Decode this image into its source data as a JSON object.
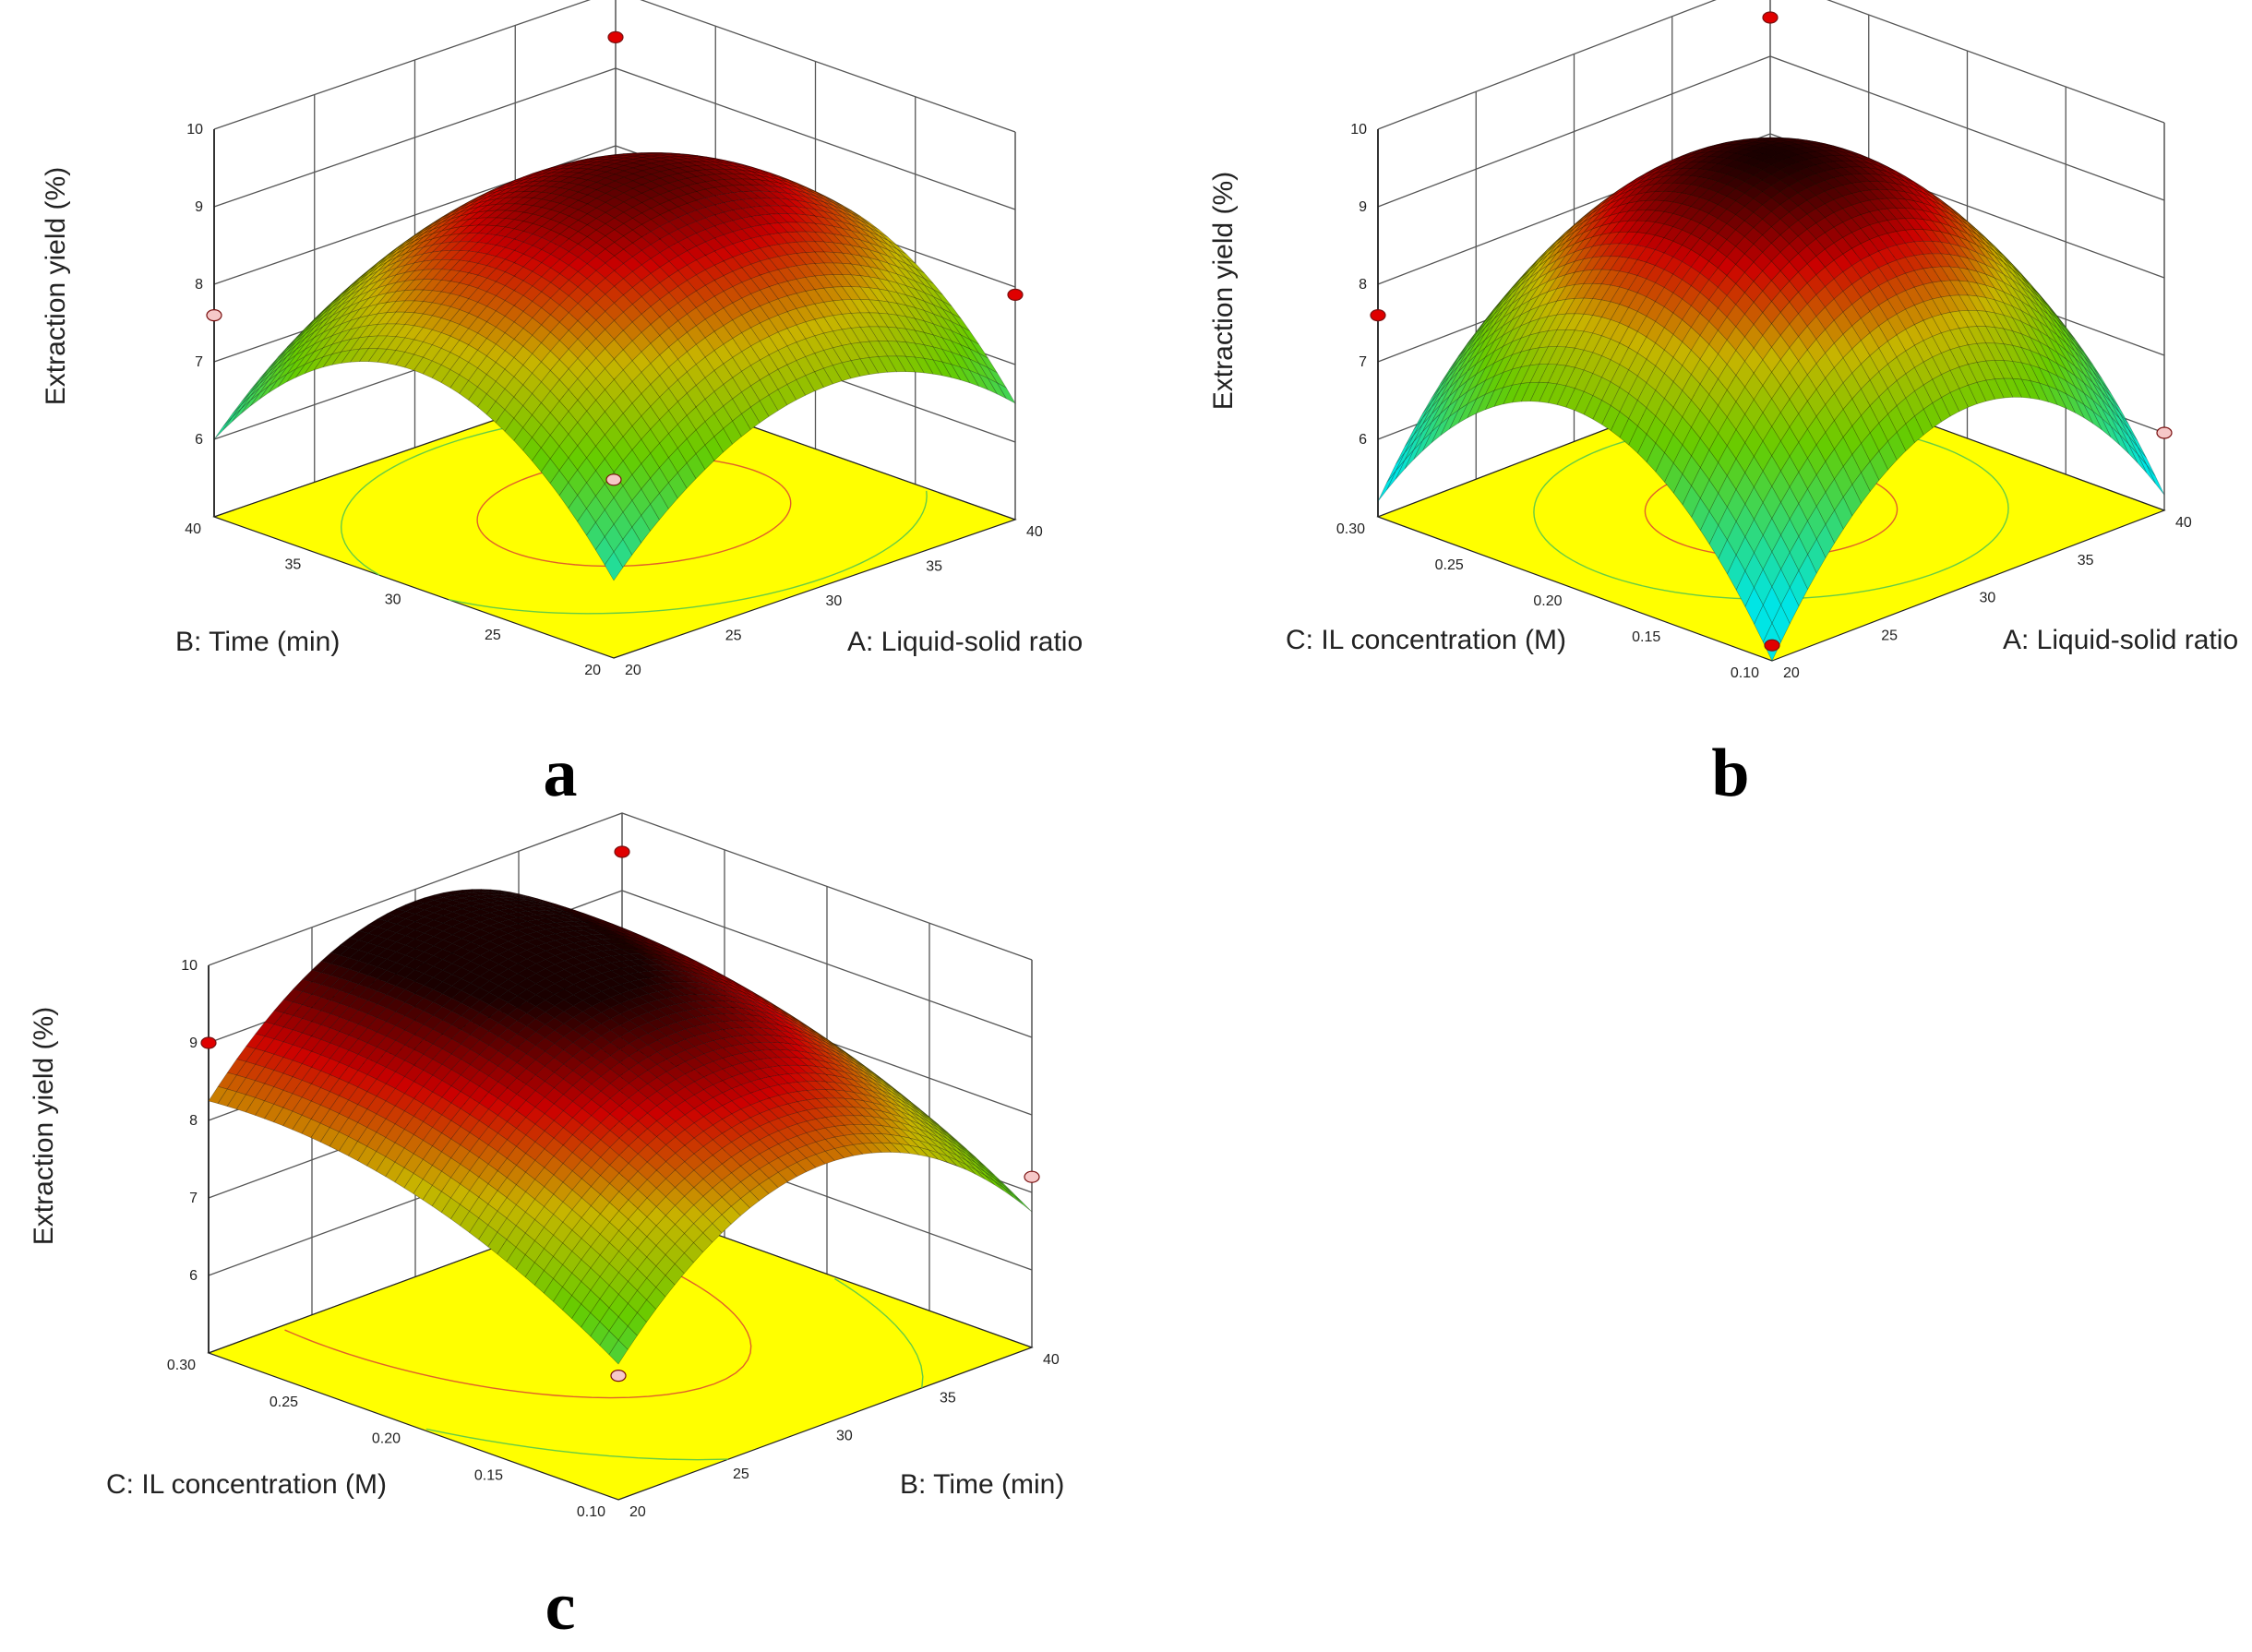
{
  "figure": {
    "colors": {
      "floor": "#ffff00",
      "low": "#00e5e5",
      "mid": "#66cc00",
      "high": "#cc0000",
      "top": "#1a0000"
    }
  },
  "chart_data": [
    {
      "id": "a",
      "type": "surface3d",
      "panel_label": "a",
      "zlabel": "Extraction yield (%)",
      "xlabel": "A: Liquid-solid ratio",
      "ylabel": "B: Time (min)",
      "x_ticks": [
        "20",
        "25",
        "30",
        "35",
        "40"
      ],
      "y_ticks": [
        "20",
        "25",
        "30",
        "35",
        "40"
      ],
      "z_ticks": [
        "6",
        "7",
        "8",
        "9",
        "10"
      ],
      "xlim": [
        20,
        40
      ],
      "ylim": [
        20,
        40
      ],
      "zlim": [
        5,
        10
      ],
      "z_tick_values": [
        6,
        7,
        8,
        9,
        10
      ],
      "surface": {
        "z0": 9.35,
        "ax": -1.3,
        "ay": -1.8,
        "bx": 0.25,
        "by": 0.0,
        "cxy": 0.0
      },
      "points": [
        {
          "x": 20,
          "y": 20,
          "z": 7.3,
          "high": false
        },
        {
          "x": 40,
          "y": 20,
          "z": 7.9,
          "high": true
        },
        {
          "x": 20,
          "y": 40,
          "z": 7.6,
          "high": false
        },
        {
          "x": 40,
          "y": 40,
          "z": 9.4,
          "high": true
        }
      ]
    },
    {
      "id": "b",
      "type": "surface3d",
      "panel_label": "b",
      "zlabel": "Extraction yield (%)",
      "xlabel": "A: Liquid-solid ratio",
      "ylabel": "C: IL concentration (M)",
      "x_ticks": [
        "20",
        "25",
        "30",
        "35",
        "40"
      ],
      "y_ticks": [
        "0.10",
        "0.15",
        "0.20",
        "0.25",
        "0.30"
      ],
      "z_ticks": [
        "6",
        "7",
        "8",
        "9",
        "10"
      ],
      "xlim": [
        20,
        40
      ],
      "ylim": [
        0.1,
        0.3
      ],
      "zlim": [
        5,
        10
      ],
      "z_tick_values": [
        6,
        7,
        8,
        9,
        10
      ],
      "surface": {
        "z0": 9.6,
        "ax": -2.2,
        "ay": -2.2,
        "bx": 0.1,
        "by": 0.1,
        "cxy": 0.0
      },
      "points": [
        {
          "x": 20,
          "y": 0.1,
          "z": 5.2,
          "high": true
        },
        {
          "x": 40,
          "y": 0.1,
          "z": 6.0,
          "high": false
        },
        {
          "x": 20,
          "y": 0.3,
          "z": 7.6,
          "high": true
        },
        {
          "x": 40,
          "y": 0.3,
          "z": 9.5,
          "high": true
        }
      ]
    },
    {
      "id": "c",
      "type": "surface3d",
      "panel_label": "c",
      "zlabel": "Extraction yield (%)",
      "xlabel": "B: Time (min)",
      "ylabel": "C: IL concentration (M)",
      "x_ticks": [
        "20",
        "25",
        "30",
        "35",
        "40"
      ],
      "y_ticks": [
        "0.10",
        "0.15",
        "0.20",
        "0.25",
        "0.30"
      ],
      "z_ticks": [
        "6",
        "7",
        "8",
        "9",
        "10"
      ],
      "xlim": [
        20,
        40
      ],
      "ylim": [
        0.1,
        0.3
      ],
      "zlim": [
        5,
        10
      ],
      "z_tick_values": [
        6,
        7,
        8,
        9,
        10
      ],
      "surface": {
        "z0": 9.6,
        "ax": -1.6,
        "ay": -0.5,
        "bx": 0.0,
        "by": 0.75,
        "cxy": 0.0
      },
      "points": [
        {
          "x": 20,
          "y": 0.1,
          "z": 6.6,
          "high": false
        },
        {
          "x": 40,
          "y": 0.1,
          "z": 7.2,
          "high": false
        },
        {
          "x": 20,
          "y": 0.3,
          "z": 9.0,
          "high": true
        },
        {
          "x": 40,
          "y": 0.3,
          "z": 9.5,
          "high": true
        }
      ]
    }
  ]
}
